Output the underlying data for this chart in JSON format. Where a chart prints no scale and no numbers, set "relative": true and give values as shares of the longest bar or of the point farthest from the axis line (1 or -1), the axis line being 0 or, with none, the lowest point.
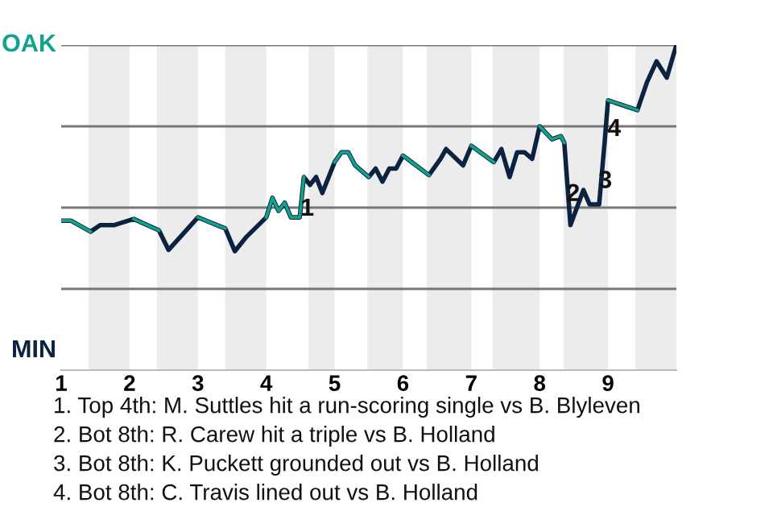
{
  "chart_data": {
    "type": "line",
    "relative": true,
    "x": [
      1,
      1.14,
      1.43,
      1.57,
      1.77,
      2.06,
      2.43,
      2.57,
      2.77,
      3,
      3.4,
      3.54,
      3.71,
      4,
      4.09,
      4.18,
      4.27,
      4.36,
      4.49,
      4.55,
      4.64,
      4.73,
      4.82,
      5,
      5.1,
      5.2,
      5.3,
      5.5,
      5.6,
      5.7,
      5.8,
      5.9,
      6,
      6.38,
      6.55,
      6.63,
      6.88,
      7,
      7.33,
      7.44,
      7.56,
      7.67,
      7.78,
      7.89,
      8,
      8.18,
      8.31,
      8.36,
      8.45,
      8.64,
      8.73,
      8.82,
      8.87,
      8.95,
      9,
      9.43,
      9.57,
      9.71,
      9.86,
      10
    ],
    "series": [
      {
        "color": "#13a38c",
        "values": [
          0.46,
          0.46,
          0.426,
          null,
          null,
          0.465,
          0.43,
          null,
          null,
          0.47,
          0.436,
          null,
          null,
          0.47,
          0.53,
          0.49,
          0.515,
          0.47,
          0.47,
          0.594,
          null,
          null,
          null,
          0.64,
          0.67,
          0.67,
          0.63,
          0.594,
          null,
          null,
          null,
          null,
          0.66,
          0.6,
          null,
          null,
          null,
          0.69,
          0.64,
          null,
          null,
          null,
          null,
          null,
          0.75,
          0.71,
          0.72,
          0.7,
          null,
          null,
          null,
          null,
          null,
          null,
          0.83,
          0.8,
          null,
          null,
          null,
          null
        ]
      },
      {
        "color": "#0b2341",
        "values": [
          0.46,
          0.46,
          0.426,
          0.446,
          0.446,
          0.465,
          0.43,
          0.37,
          0.416,
          0.47,
          0.436,
          0.366,
          0.41,
          0.47,
          0.53,
          0.49,
          0.515,
          0.47,
          0.47,
          0.594,
          0.57,
          0.594,
          0.545,
          0.64,
          0.67,
          0.67,
          0.63,
          0.594,
          0.62,
          0.58,
          0.62,
          0.62,
          0.66,
          0.6,
          0.65,
          0.68,
          0.63,
          0.69,
          0.64,
          0.68,
          0.594,
          0.67,
          0.67,
          0.65,
          0.75,
          0.71,
          0.72,
          0.7,
          0.446,
          0.554,
          0.51,
          0.51,
          0.51,
          0.7,
          0.83,
          0.8,
          0.886,
          0.95,
          0.9,
          1
        ]
      }
    ],
    "xlim": [
      1,
      10
    ],
    "xticks": [
      1,
      2,
      3,
      4,
      5,
      6,
      7,
      8,
      9
    ],
    "ref_lines": [
      {
        "axis": "y",
        "value": 0.25,
        "color": "#777777"
      },
      {
        "axis": "y",
        "value": 0.5,
        "color": "#777777"
      },
      {
        "axis": "y",
        "value": 0.75,
        "color": "#777777"
      },
      {
        "axis": "y",
        "value": 1,
        "color": "#777777"
      }
    ],
    "bands": [
      {
        "axis": "x",
        "from": 1.4,
        "to": 2,
        "color": "#ececec"
      },
      {
        "axis": "x",
        "from": 2.4,
        "to": 3,
        "color": "#ececec"
      },
      {
        "axis": "x",
        "from": 3.4,
        "to": 4,
        "color": "#ececec"
      },
      {
        "axis": "x",
        "from": 4.62,
        "to": 5,
        "color": "#ececec"
      },
      {
        "axis": "x",
        "from": 5.48,
        "to": 6,
        "color": "#ececec"
      },
      {
        "axis": "x",
        "from": 6.35,
        "to": 7,
        "color": "#ececec"
      },
      {
        "axis": "x",
        "from": 7.31,
        "to": 8,
        "color": "#ececec"
      },
      {
        "axis": "x",
        "from": 8.35,
        "to": 9,
        "color": "#ececec"
      },
      {
        "axis": "x",
        "from": 9.4,
        "to": 10,
        "color": "#ececec"
      }
    ],
    "annotations": [
      "OAK",
      "MIN",
      {
        "text": "1",
        "x": 4.6,
        "y": 0.495
      },
      {
        "text": "2",
        "x": 8.49,
        "y": 0.54
      },
      {
        "text": "3",
        "x": 8.96,
        "y": 0.58
      },
      {
        "text": "4",
        "x": 9.09,
        "y": 0.74
      },
      "1. Top 4th: M. Suttles hit a run-scoring single vs B. Blyleven",
      "2. Bot 8th: R. Carew hit a triple vs B. Holland",
      "3. Bot 8th: K. Puckett grounded out vs B. Holland",
      "4. Bot 8th: C. Travis lined out vs B. Holland"
    ]
  }
}
